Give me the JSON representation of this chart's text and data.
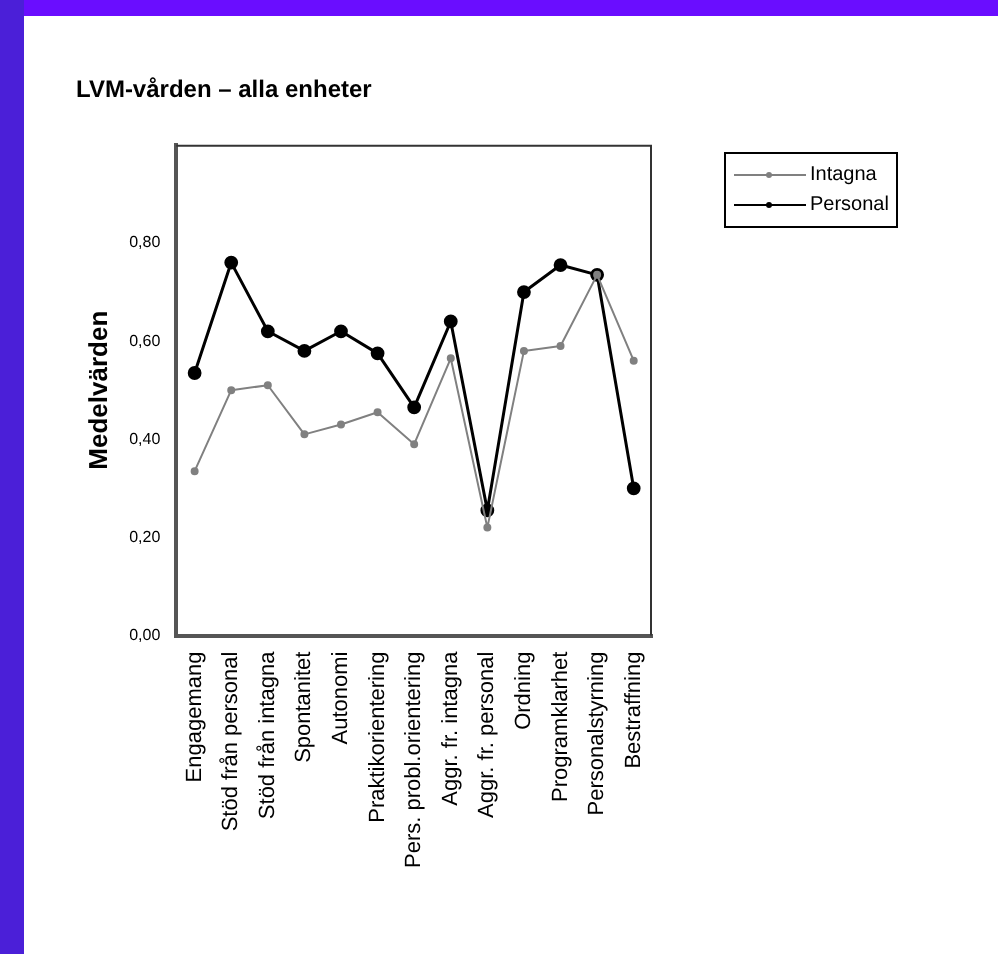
{
  "chart_data": {
    "type": "line",
    "title": "LVM-vården – alla enheter",
    "ylabel": "Medelvärden",
    "categories": [
      "Engagemang",
      "Stöd från personal",
      "Stöd från intagna",
      "Spontanitet",
      "Autonomi",
      "Praktikorientering",
      "Pers. probl.orientering",
      "Aggr. fr. intagna",
      "Aggr. fr. personal",
      "Ordning",
      "Programklarhet",
      "Personalstyrning",
      "Bestraffning"
    ],
    "series": [
      {
        "name": "Intagna",
        "color": "#808080",
        "values": [
          0.335,
          0.5,
          0.51,
          0.41,
          0.43,
          0.455,
          0.39,
          0.565,
          0.22,
          0.58,
          0.59,
          0.735,
          0.56
        ]
      },
      {
        "name": "Personal",
        "color": "#000000",
        "values": [
          0.535,
          0.76,
          0.62,
          0.58,
          0.62,
          0.575,
          0.465,
          0.64,
          0.255,
          0.7,
          0.755,
          0.735,
          0.3
        ]
      }
    ],
    "ylim": [
      0,
      1.0
    ],
    "yticks": [
      {
        "value": 0,
        "label": "0,00"
      },
      {
        "value": 0.2,
        "label": "0,20"
      },
      {
        "value": 0.4,
        "label": "0,40"
      },
      {
        "value": 0.6,
        "label": "0,60"
      },
      {
        "value": 0.8,
        "label": "0,80"
      }
    ],
    "grid": false,
    "legend": "top right",
    "marker": "circle",
    "line_style": "solid"
  }
}
